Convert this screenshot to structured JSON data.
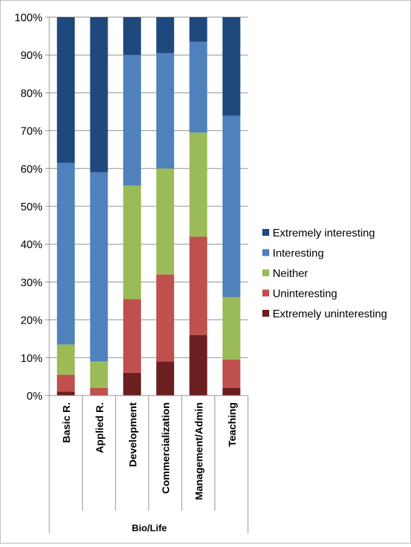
{
  "chart_data": {
    "type": "bar",
    "stacked": true,
    "categories": [
      "Basic R.",
      "Applied R.",
      "Development",
      "Commercialization",
      "Management/Admin",
      "Teaching"
    ],
    "group_label": "Bio/Life",
    "ylim": [
      0,
      100
    ],
    "yticks": [
      "0%",
      "10%",
      "20%",
      "30%",
      "40%",
      "50%",
      "60%",
      "70%",
      "80%",
      "90%",
      "100%"
    ],
    "grid": true,
    "legend_position": "right",
    "series": [
      {
        "name": "Extremely uninteresting",
        "color": "#6b1f20",
        "values": [
          1,
          0,
          6,
          9,
          16,
          2
        ]
      },
      {
        "name": "Uninteresting",
        "color": "#c0504d",
        "values": [
          4.5,
          2,
          19.5,
          23,
          26,
          7.5
        ]
      },
      {
        "name": "Neither",
        "color": "#9bbb59",
        "values": [
          8,
          7,
          30,
          28,
          27.5,
          16.5
        ]
      },
      {
        "name": "Interesting",
        "color": "#4f81bd",
        "values": [
          48,
          50,
          34.5,
          30.5,
          24,
          48
        ]
      },
      {
        "name": "Extremely interesting",
        "color": "#1f497d",
        "values": [
          38.5,
          41,
          10,
          9.5,
          6.5,
          26
        ]
      }
    ]
  }
}
